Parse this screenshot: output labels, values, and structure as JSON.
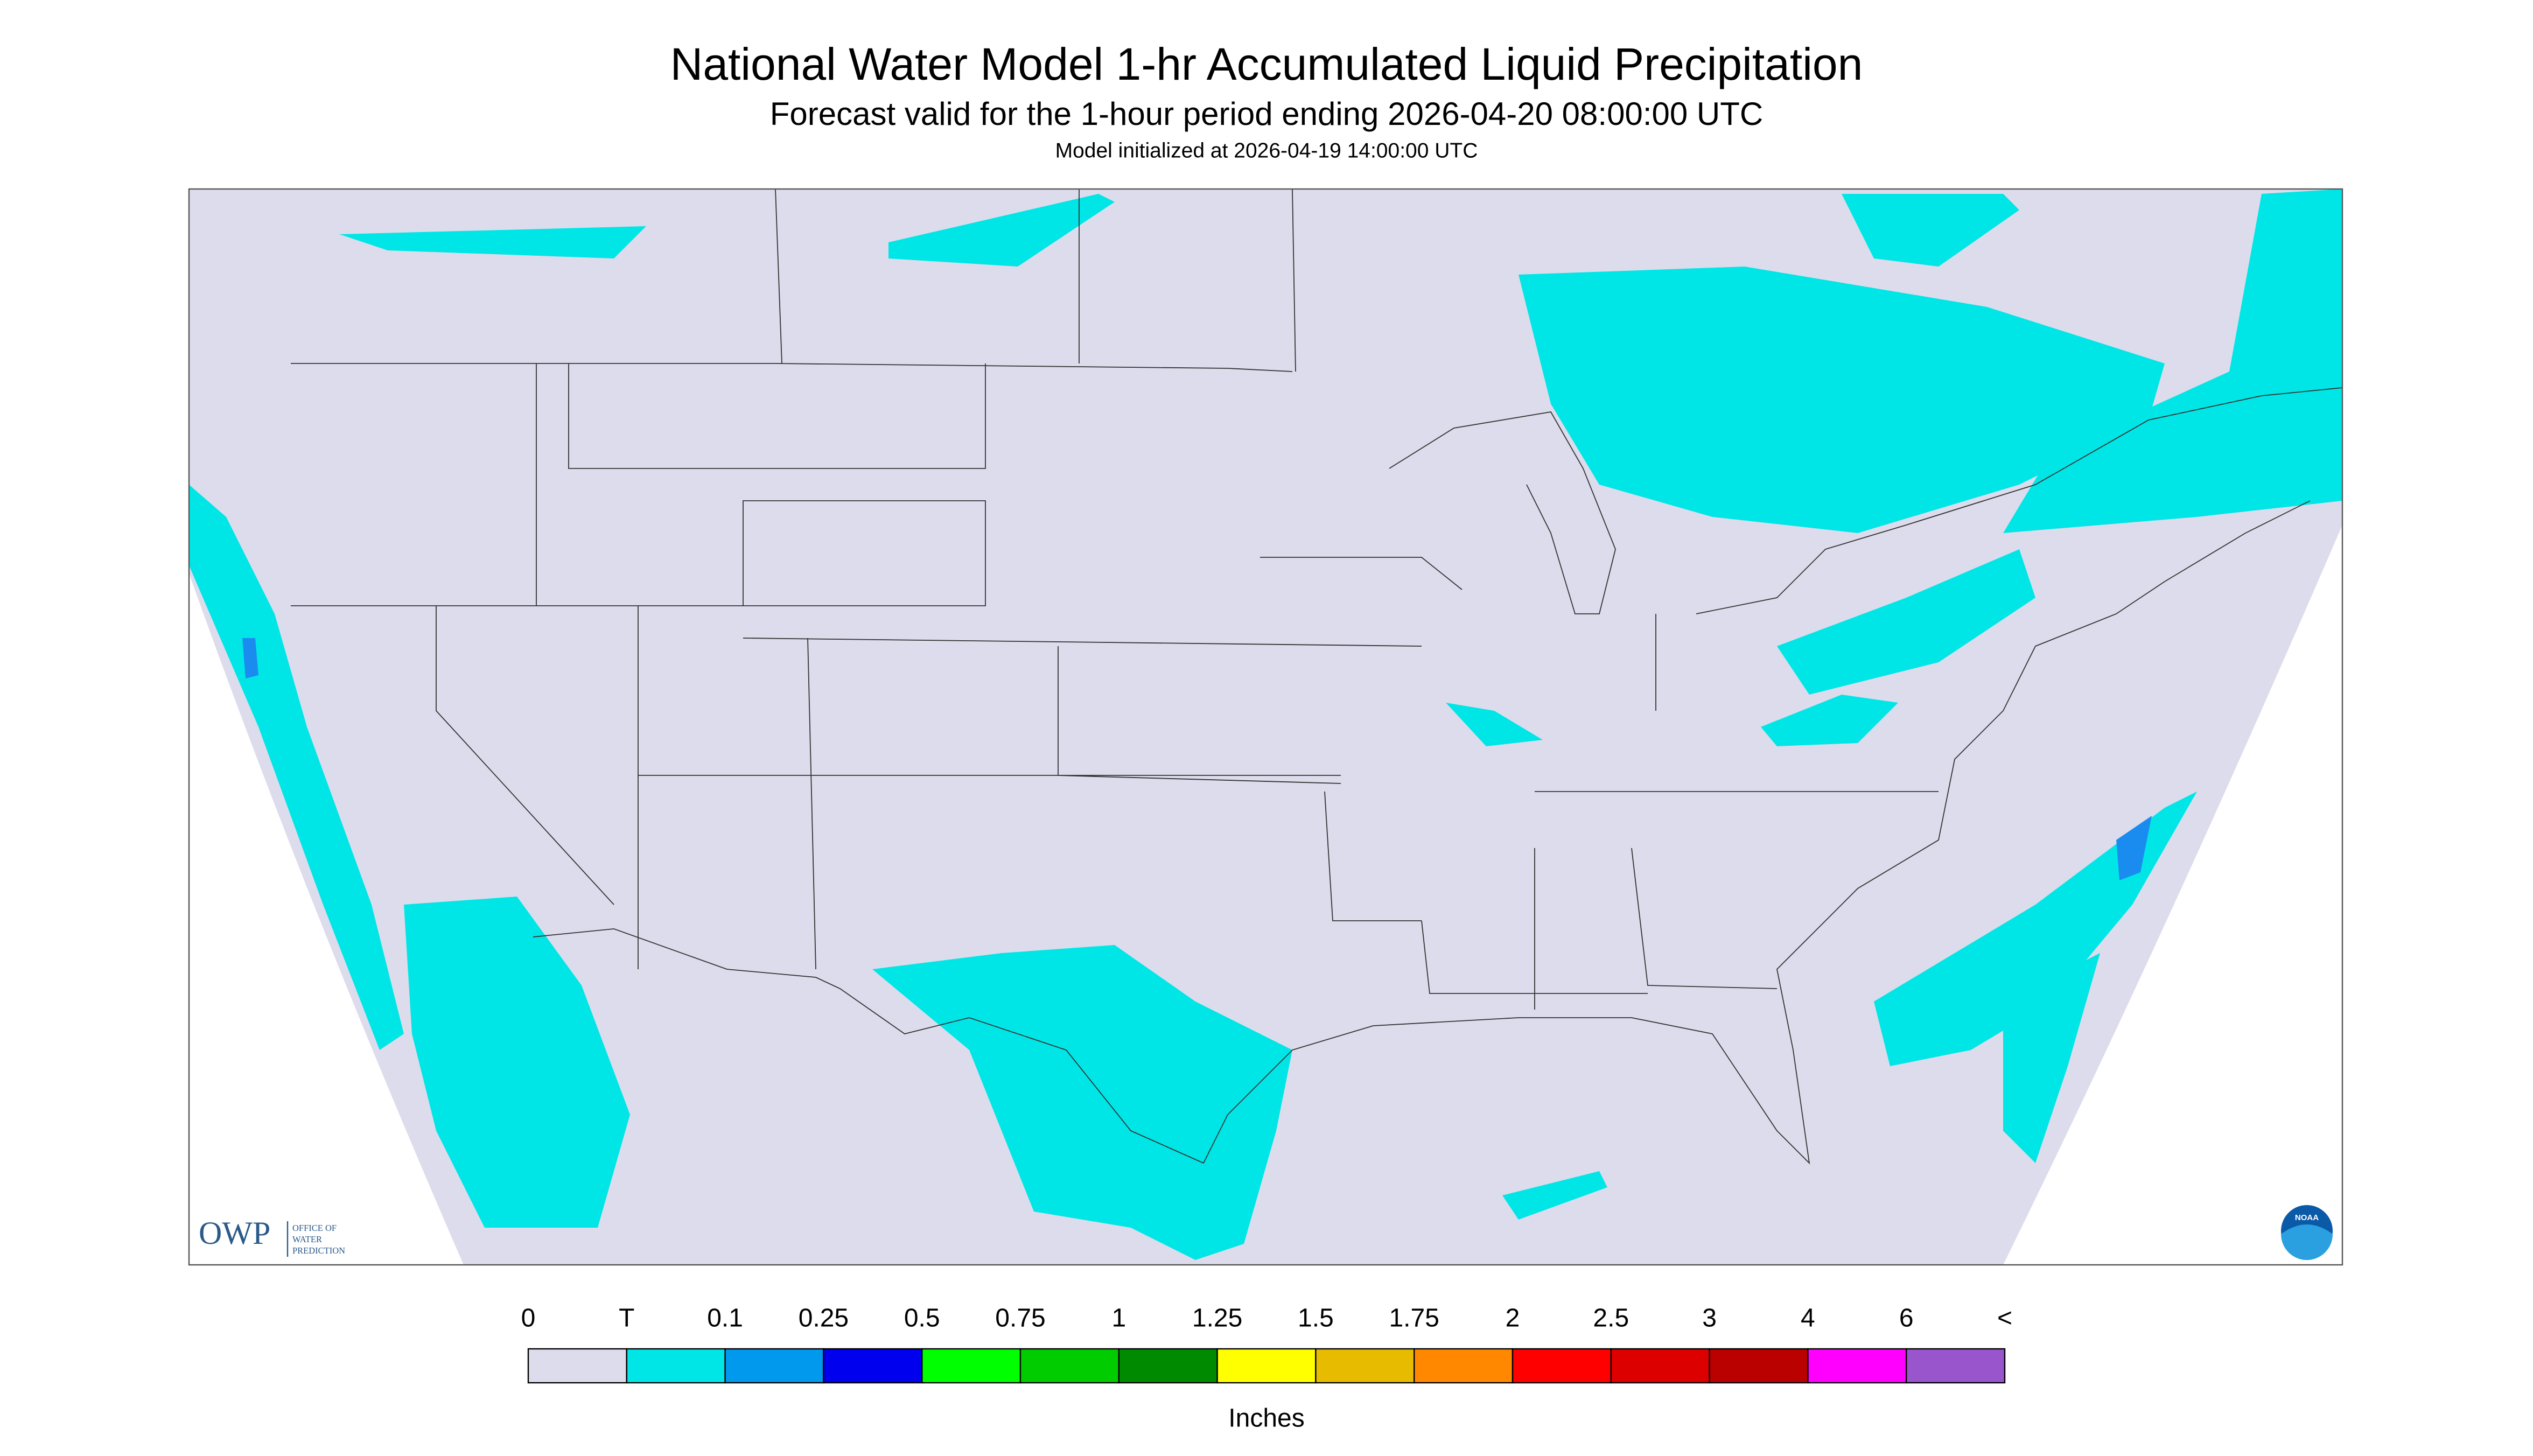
{
  "header": {
    "title": "National Water Model 1-hr Accumulated Liquid Precipitation",
    "subtitle": "Forecast valid for the 1-hour period ending 2026-04-20 08:00:00 UTC",
    "initialized": "Model initialized at 2026-04-19 14:00:00 UTC"
  },
  "logos": {
    "owp": "OWP",
    "owp_lines": [
      "OFFICE OF",
      "WATER",
      "PREDICTION"
    ],
    "noaa": "NOAA"
  },
  "legend": {
    "labels": [
      "0",
      "T",
      "0.1",
      "0.25",
      "0.5",
      "0.75",
      "1",
      "1.25",
      "1.5",
      "1.75",
      "2",
      "2.5",
      "3",
      "4",
      "6",
      "<"
    ],
    "colors": [
      "#dcdcec",
      "#00e6e6",
      "#0099ee",
      "#0000ee",
      "#00ff00",
      "#00cc00",
      "#008a00",
      "#ffff00",
      "#e6bb00",
      "#ff8800",
      "#ff0000",
      "#dd0000",
      "#bb0000",
      "#ff00ff",
      "#9955cc"
    ],
    "unit": "Inches"
  }
}
